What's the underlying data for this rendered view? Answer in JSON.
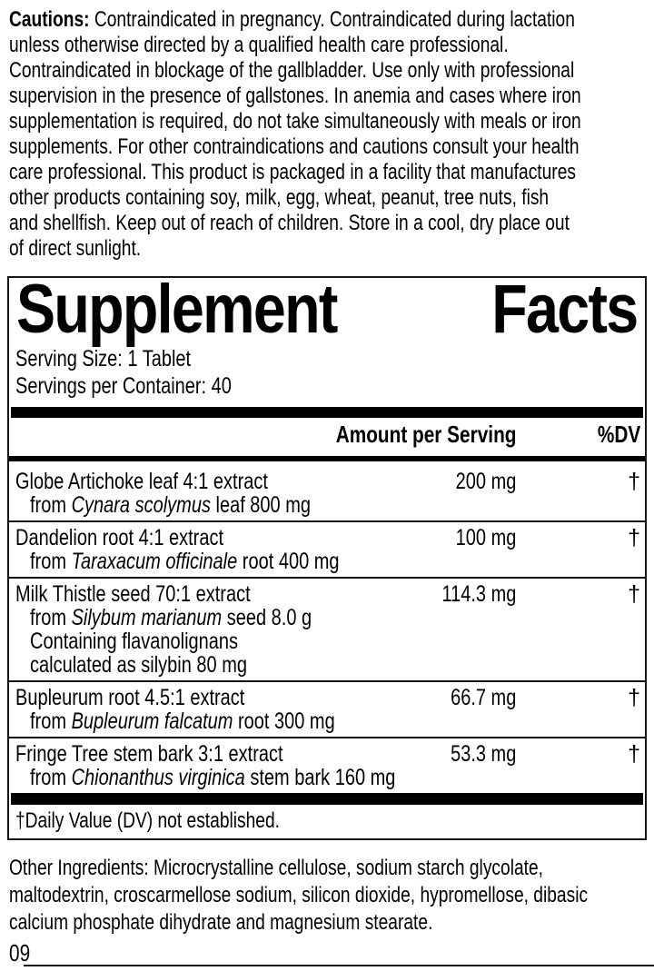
{
  "colors": {
    "background": "#ffffff",
    "text": "#000000",
    "rule": "#000000"
  },
  "cautions": {
    "label": "Cautions:",
    "lines": [
      " Contraindicated in pregnancy. Contraindicated during lactation",
      "unless otherwise directed by a qualified health care professional.",
      "Contraindicated in blockage of the gallbladder. Use only with professional",
      "supervision in the presence of gallstones. In anemia and cases where iron",
      "supplementation is required, do not take simultaneously with meals or iron",
      "supplements. For other contraindications and cautions consult your health",
      "care professional. This product is packaged in a facility that manufactures",
      "other products containing soy, milk, egg, wheat, peanut, tree nuts, fish",
      "and shellfish. Keep out of reach of children. Store in a cool, dry place out",
      "of direct sunlight."
    ]
  },
  "panel": {
    "title_words": [
      "Supplement",
      "Facts"
    ],
    "serving_size": "Serving Size: 1 Tablet",
    "servings_per_container": "Servings per Container: 40",
    "header": {
      "amount": "Amount per Serving",
      "dv": "%DV"
    },
    "rows": [
      {
        "name": "Globe Artichoke leaf 4:1 extract",
        "amount": "200 mg",
        "dv": "†",
        "sub": [
          {
            "pre": "from ",
            "italic": "Cynara scolymus",
            "post": " leaf 800 mg"
          }
        ]
      },
      {
        "name": "Dandelion root 4:1 extract",
        "amount": "100 mg",
        "dv": "†",
        "sub": [
          {
            "pre": "from ",
            "italic": "Taraxacum officinale",
            "post": " root 400 mg"
          }
        ]
      },
      {
        "name": "Milk Thistle seed 70:1 extract",
        "amount": "114.3 mg",
        "dv": "†",
        "sub": [
          {
            "pre": "from ",
            "italic": "Silybum marianum",
            "post": " seed 8.0 g"
          },
          {
            "pre": "Containing flavanolignans",
            "italic": "",
            "post": ""
          },
          {
            "pre": "calculated as silybin 80 mg",
            "italic": "",
            "post": ""
          }
        ]
      },
      {
        "name": "Bupleurum root 4.5:1 extract",
        "amount": "66.7 mg",
        "dv": "†",
        "sub": [
          {
            "pre": "from ",
            "italic": "Bupleurum falcatum",
            "post": " root 300 mg"
          }
        ]
      },
      {
        "name": "Fringe Tree stem bark 3:1 extract",
        "amount": "53.3 mg",
        "dv": "†",
        "sub": [
          {
            "pre": "from ",
            "italic": "Chionanthus virginica",
            "post": " stem bark 160 mg"
          }
        ]
      }
    ],
    "footnote": "†Daily Value (DV) not established."
  },
  "other_ingredients": {
    "lines": [
      "Other Ingredients: Microcrystalline cellulose, sodium starch glycolate,",
      "maltodextrin, croscarmellose sodium, silicon dioxide, hypromellose, dibasic",
      "calcium phosphate dihydrate and magnesium stearate."
    ]
  },
  "footer": {
    "code": "09"
  }
}
